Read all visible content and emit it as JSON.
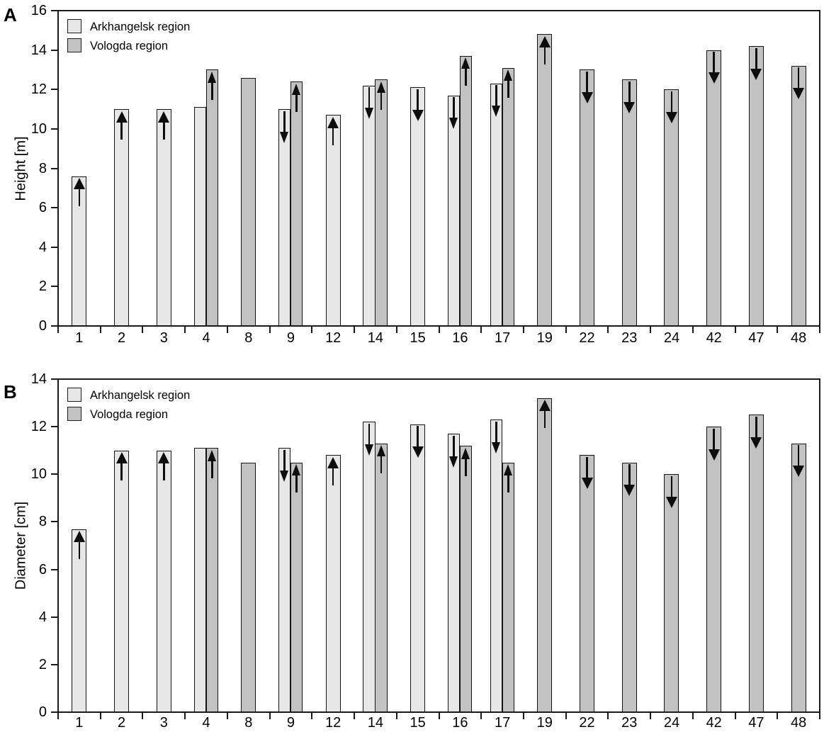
{
  "figure": {
    "panels": [
      {
        "panel_label": "A"
      },
      {
        "panel_label": "B"
      }
    ]
  },
  "colors": {
    "arkhangelsk_fill": "#e7e7e7",
    "vologda_fill": "#c2c2c2",
    "bar_border": "#141414",
    "axis": "#1a1a1a",
    "arrow": "#0d0d0d"
  },
  "chart_data": [
    {
      "type": "bar",
      "panel": "A",
      "title": "",
      "xlabel": "",
      "ylabel": "Height [m]",
      "ylim": [
        0,
        16
      ],
      "yticks": [
        0,
        2,
        4,
        6,
        8,
        10,
        12,
        14,
        16
      ],
      "grid": false,
      "legend_position": "top-left",
      "categories": [
        "1",
        "2",
        "3",
        "4",
        "8",
        "9",
        "12",
        "14",
        "15",
        "16",
        "17",
        "19",
        "22",
        "23",
        "24",
        "42",
        "47",
        "48"
      ],
      "series": [
        {
          "name": "Arkhangelsk region",
          "color": "#e7e7e7",
          "values": [
            7.6,
            11.0,
            11.0,
            11.1,
            null,
            11.0,
            10.7,
            12.2,
            12.1,
            11.7,
            12.3,
            null,
            null,
            null,
            null,
            null,
            null,
            null
          ],
          "arrows": [
            "up",
            "up",
            "up",
            null,
            null,
            "down",
            "up",
            "down",
            "down",
            "down",
            "down",
            null,
            null,
            null,
            null,
            null,
            null,
            null
          ]
        },
        {
          "name": "Vologda region",
          "color": "#c2c2c2",
          "values": [
            null,
            null,
            null,
            13.0,
            12.6,
            12.4,
            null,
            12.5,
            null,
            13.7,
            13.1,
            14.8,
            13.0,
            12.5,
            12.0,
            14.0,
            14.2,
            13.2
          ],
          "arrows": [
            null,
            null,
            null,
            "up",
            null,
            "up",
            null,
            "up",
            null,
            "up",
            "up",
            "up",
            "down",
            "down",
            "down",
            "down",
            "down",
            "down"
          ]
        }
      ]
    },
    {
      "type": "bar",
      "panel": "B",
      "title": "",
      "xlabel": "",
      "ylabel": "Diameter [cm]",
      "ylim": [
        0,
        14
      ],
      "yticks": [
        0,
        2,
        4,
        6,
        8,
        10,
        12,
        14
      ],
      "grid": false,
      "legend_position": "top-left",
      "categories": [
        "1",
        "2",
        "3",
        "4",
        "8",
        "9",
        "12",
        "14",
        "15",
        "16",
        "17",
        "19",
        "22",
        "23",
        "24",
        "42",
        "47",
        "48"
      ],
      "series": [
        {
          "name": "Arkhangelsk region",
          "color": "#e7e7e7",
          "values": [
            7.7,
            11.0,
            11.0,
            11.1,
            null,
            11.1,
            10.8,
            12.2,
            12.1,
            11.7,
            12.3,
            null,
            null,
            null,
            null,
            null,
            null,
            null
          ],
          "arrows": [
            "up",
            "up",
            "up",
            null,
            null,
            "down",
            "up",
            "down",
            "down",
            "down",
            "down",
            null,
            null,
            null,
            null,
            null,
            null,
            null
          ]
        },
        {
          "name": "Vologda region",
          "color": "#c2c2c2",
          "values": [
            null,
            null,
            null,
            11.1,
            10.5,
            10.5,
            null,
            11.3,
            null,
            11.2,
            10.5,
            13.2,
            10.8,
            10.5,
            10.0,
            12.0,
            12.5,
            11.3
          ],
          "arrows": [
            null,
            null,
            null,
            "up",
            null,
            "up",
            null,
            "up",
            null,
            "up",
            "up",
            "up",
            "down",
            "down",
            "down",
            "down",
            "down",
            "down"
          ]
        }
      ]
    }
  ]
}
